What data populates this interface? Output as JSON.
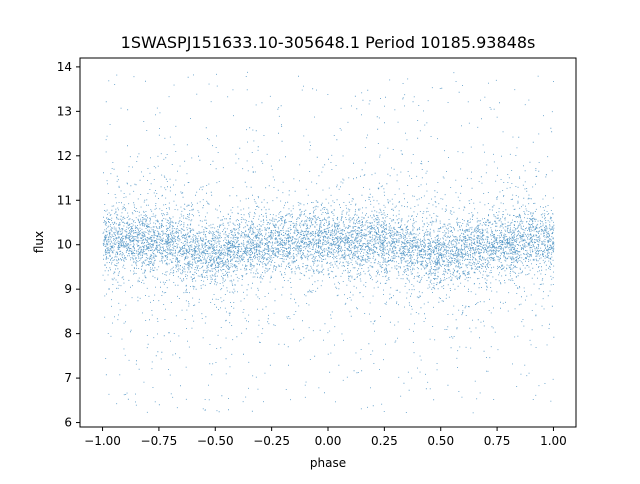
{
  "chart_data": {
    "type": "scatter",
    "title": "1SWASPJ151633.10-305648.1 Period 10185.93848s",
    "xlabel": "phase",
    "ylabel": "flux",
    "xlim": [
      -1.1,
      1.1
    ],
    "ylim": [
      5.9,
      14.2
    ],
    "xticks": [
      -1.0,
      -0.75,
      -0.5,
      -0.25,
      0.0,
      0.25,
      0.5,
      0.75,
      1.0
    ],
    "xtick_labels": [
      "−1.00",
      "−0.75",
      "−0.50",
      "−0.25",
      "0.00",
      "0.25",
      "0.50",
      "0.75",
      "1.00"
    ],
    "yticks": [
      6,
      7,
      8,
      9,
      10,
      11,
      12,
      13,
      14
    ],
    "ytick_labels": [
      "6",
      "7",
      "8",
      "9",
      "10",
      "11",
      "12",
      "13",
      "14"
    ],
    "grid": false,
    "legend": "none",
    "point_color": "#1f77b4",
    "series": [
      {
        "phase_range": [
          -1.0,
          1.0
        ],
        "flux_center": 10.1,
        "flux_range": [
          6.2,
          13.9
        ],
        "dense_band": [
          9.4,
          10.8
        ],
        "dip_phases": [
          -0.5,
          0.5
        ],
        "dip_center": 9.8
      }
    ]
  }
}
